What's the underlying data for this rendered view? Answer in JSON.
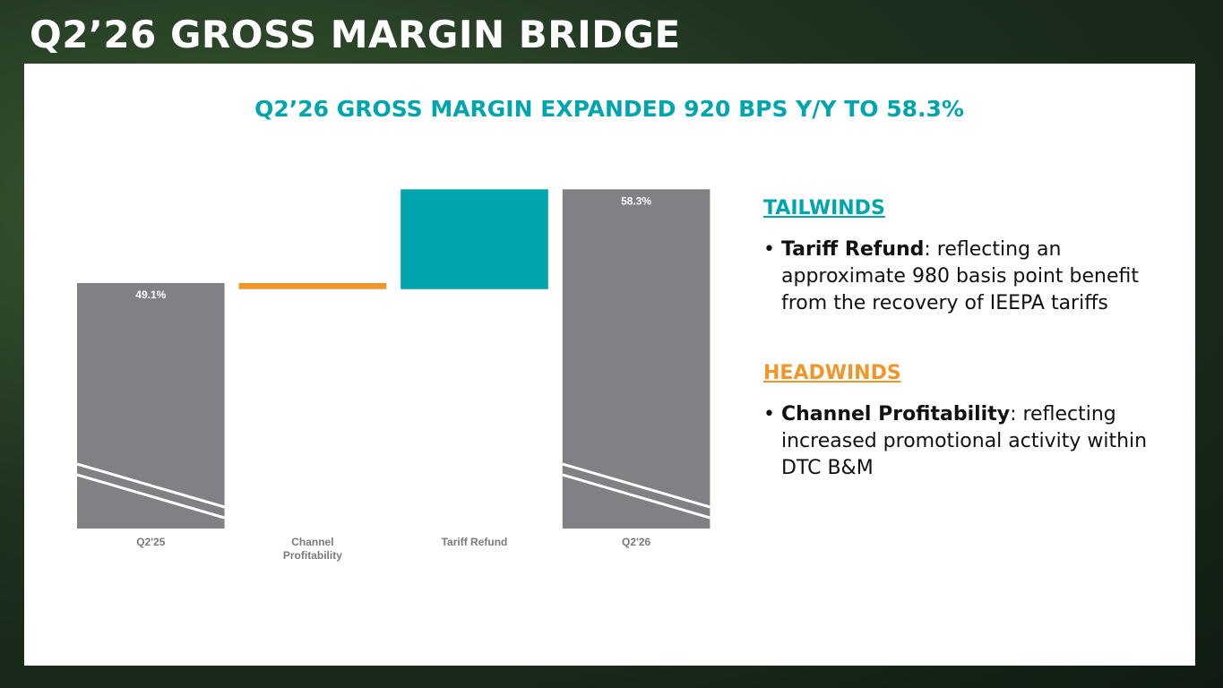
{
  "header": {
    "title": "Q2’26 GROSS MARGIN BRIDGE"
  },
  "chart_data": {
    "type": "waterfall",
    "title": "Q2’26 GROSS MARGIN EXPANDED 920 BPS Y/Y TO 58.3%",
    "categories": [
      "Q2'25",
      "Channel Profitability",
      "Tariff Refund",
      "Q2'26"
    ],
    "measures": [
      "total",
      "relative",
      "relative",
      "total"
    ],
    "values": [
      49.1,
      -0.6,
      9.8,
      58.3
    ],
    "value_labels": [
      "49.1%",
      null,
      null,
      "58.3%"
    ],
    "colors": [
      "#808184",
      "#f0962a",
      "#00a5ad",
      "#808184"
    ],
    "ylim": [
      25,
      60
    ],
    "axis_break": true
  },
  "notes": [
    {
      "heading": "TAILWINDS",
      "color": "#00a5ad",
      "items": [
        {
          "term": "Tariff Refund",
          "text": ": reflecting an approximate 980 basis point benefit from the recovery of IEEPA tariffs"
        }
      ]
    },
    {
      "heading": "HEADWINDS",
      "color": "#f0962a",
      "items": [
        {
          "term": "Channel Profitability",
          "text": ": reflecting increased promotional activity within DTC B&M"
        }
      ]
    }
  ]
}
